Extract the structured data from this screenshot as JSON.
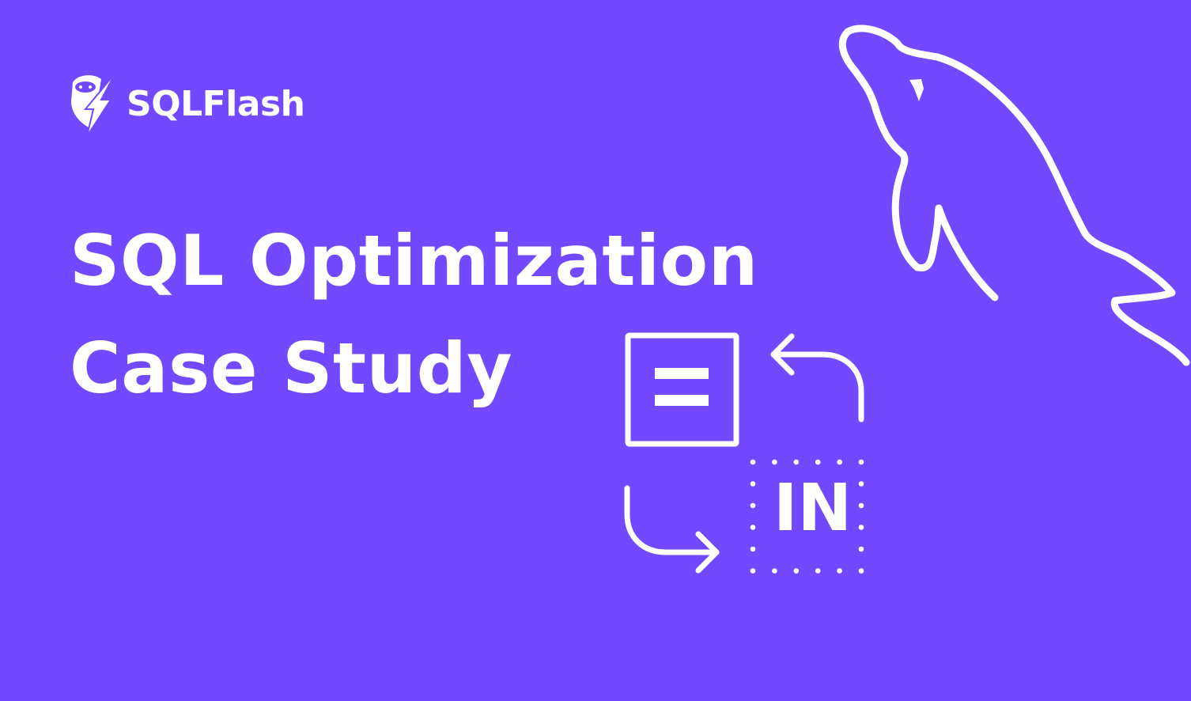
{
  "brand": {
    "name": "SQLFlash",
    "logo_icon": "sloth-lightning-icon"
  },
  "title": {
    "line1": "SQL Optimization",
    "line2": "Case Study"
  },
  "illustration": {
    "operator_label": "IN",
    "equals_icon": "equals-box-icon",
    "dolphin_icon": "mysql-dolphin-icon"
  },
  "colors": {
    "background": "#7249FF",
    "foreground": "#FFFFFF"
  }
}
